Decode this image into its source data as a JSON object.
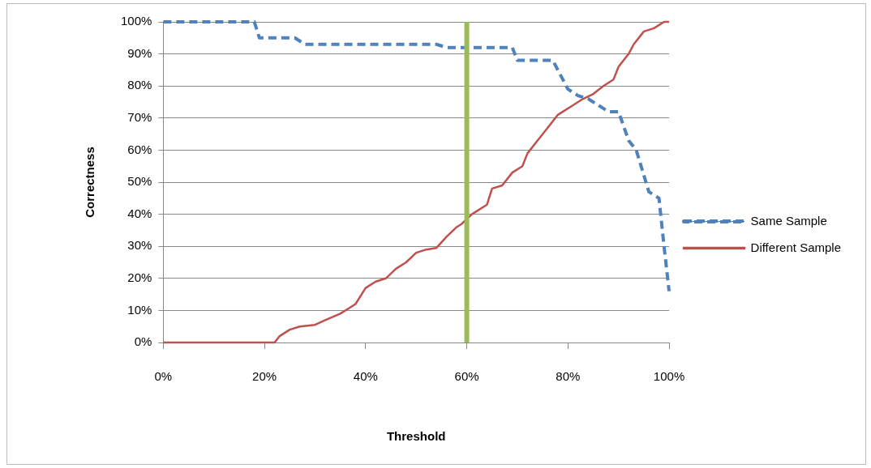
{
  "chart_data": {
    "type": "line",
    "xlabel": "Threshold",
    "ylabel": "Correctness",
    "xlim": [
      0,
      100
    ],
    "ylim": [
      0,
      100
    ],
    "xticks": [
      {
        "value": 0,
        "label": "0%"
      },
      {
        "value": 20,
        "label": "20%"
      },
      {
        "value": 40,
        "label": "40%"
      },
      {
        "value": 60,
        "label": "60%"
      },
      {
        "value": 80,
        "label": "80%"
      },
      {
        "value": 100,
        "label": "100%"
      }
    ],
    "yticks": [
      {
        "value": 0,
        "label": "0%"
      },
      {
        "value": 10,
        "label": "10%"
      },
      {
        "value": 20,
        "label": "20%"
      },
      {
        "value": 30,
        "label": "30%"
      },
      {
        "value": 40,
        "label": "40%"
      },
      {
        "value": 50,
        "label": "50%"
      },
      {
        "value": 60,
        "label": "60%"
      },
      {
        "value": 70,
        "label": "70%"
      },
      {
        "value": 80,
        "label": "80%"
      },
      {
        "value": 90,
        "label": "90%"
      },
      {
        "value": 100,
        "label": "100%"
      }
    ],
    "grid": "y",
    "legend": "right",
    "marker": "none",
    "series": [
      {
        "name": "Same Sample",
        "color": "#4f81bd",
        "line_style": "dashed",
        "x": [
          0,
          18,
          19,
          26,
          28,
          54,
          56,
          69,
          70,
          77,
          80,
          82,
          84,
          88,
          90,
          92,
          93.5,
          96,
          98,
          99,
          100
        ],
        "values": [
          100,
          100,
          95,
          95,
          93,
          93,
          92,
          92,
          88,
          88,
          79,
          77,
          76,
          72,
          72,
          63,
          60,
          47,
          45,
          30,
          16
        ]
      },
      {
        "name": "Different Sample",
        "color": "#c0504d",
        "line_style": "solid",
        "x": [
          0,
          22,
          23,
          25,
          27,
          30,
          32,
          35,
          37,
          38,
          40,
          42,
          44,
          46,
          48,
          50,
          52,
          54,
          56,
          58,
          59,
          61,
          64,
          65,
          67,
          69,
          71,
          72,
          74,
          76,
          78,
          79,
          81,
          83,
          85,
          87,
          89,
          90,
          92,
          93,
          95,
          97,
          99,
          100
        ],
        "values": [
          0,
          0,
          2,
          4,
          5,
          5.5,
          7,
          9,
          11,
          12,
          17,
          19,
          20,
          23,
          25,
          28,
          29,
          29.5,
          33,
          36,
          37,
          40,
          43,
          48,
          49,
          53,
          55,
          59,
          63,
          67,
          71,
          72,
          74,
          76,
          77.5,
          80,
          82,
          86,
          90,
          93,
          97,
          98,
          100,
          100
        ]
      }
    ],
    "ref_lines": [
      {
        "axis": "x",
        "value": 60,
        "color": "#9bbb59"
      }
    ]
  }
}
